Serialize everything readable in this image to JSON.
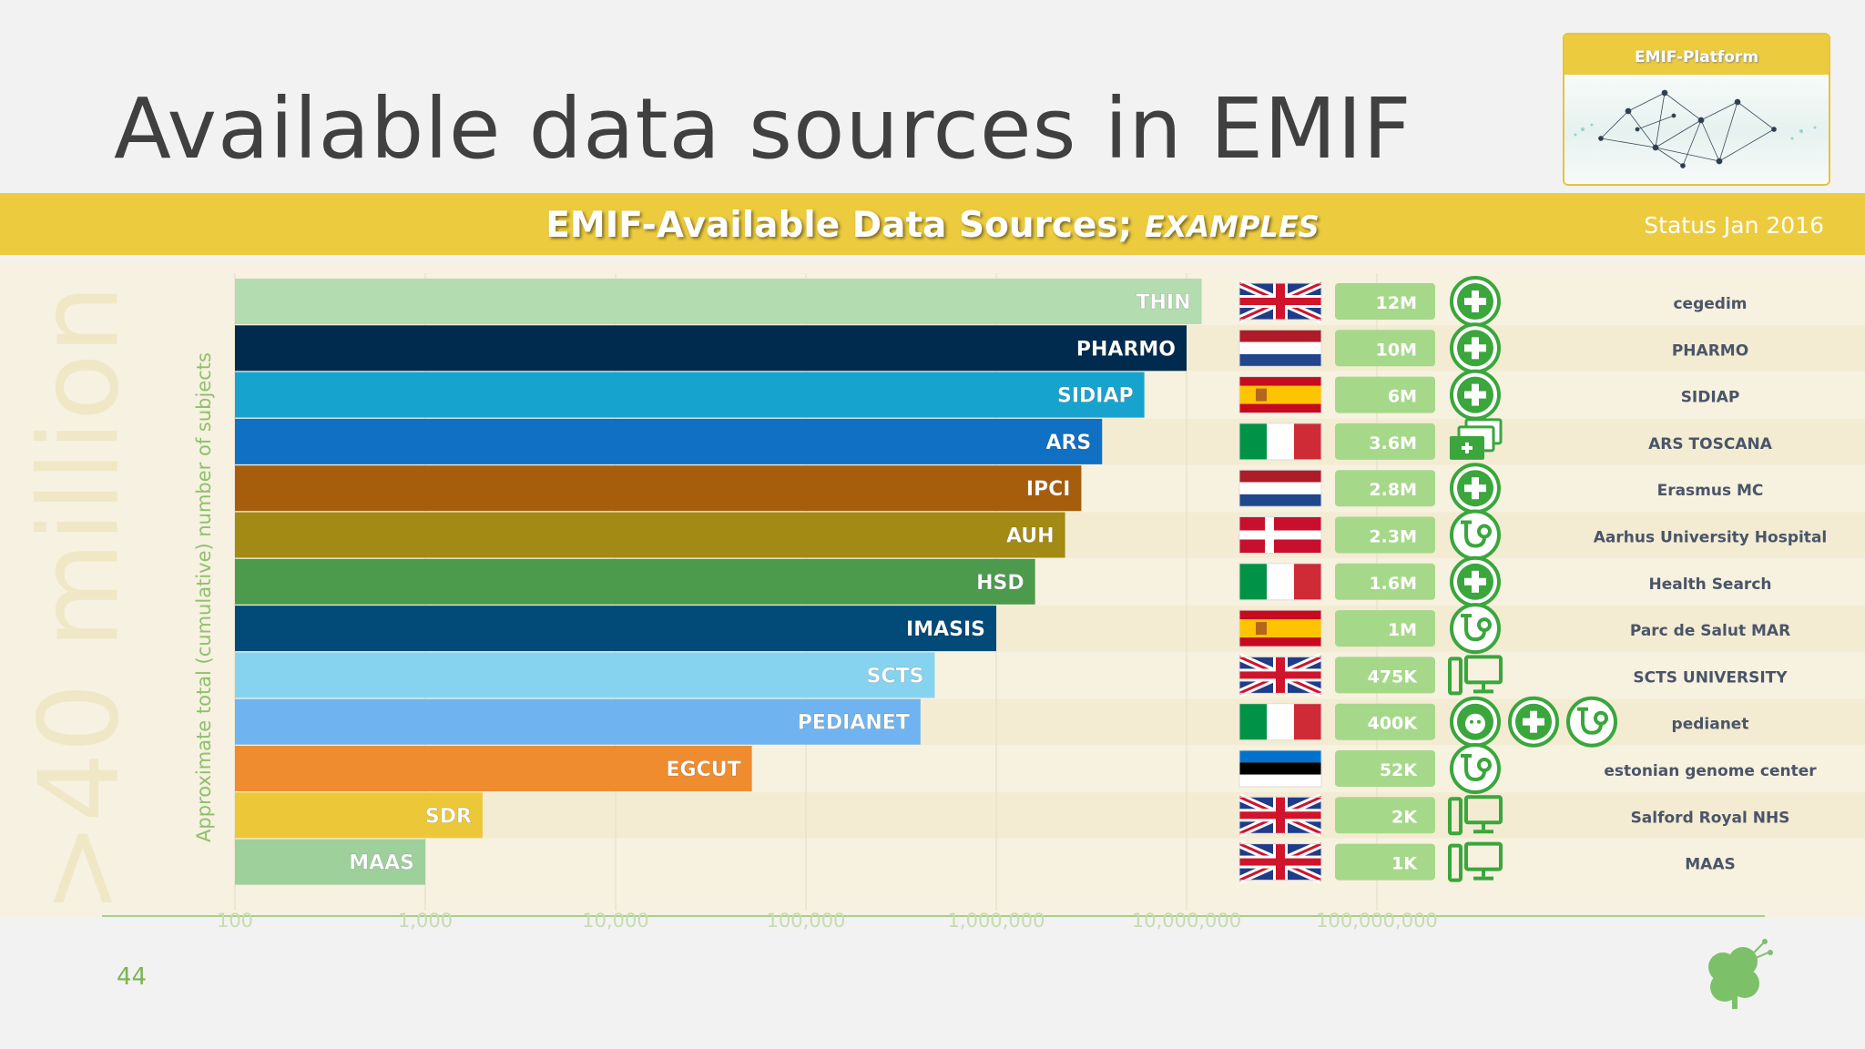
{
  "slide": {
    "title": "Available data sources in EMIF",
    "page_number": "44",
    "logo_header": "EMIF-Platform",
    "big_side_text": ">40 million"
  },
  "banner": {
    "title": "EMIF-Available Data Sources;",
    "title_suffix": "EXAMPLES",
    "status": "Status Jan 2016"
  },
  "colors": {
    "banner": "#eccb3f",
    "badge": "#a6d88a",
    "icon_green": "#3aa63c"
  },
  "chart_data": {
    "type": "bar",
    "orientation": "horizontal",
    "x_scale": "log",
    "title": "EMIF-Available Data Sources; EXAMPLES",
    "ylabel": "Approximate total (cumulative) number of subjects",
    "xlim": [
      100,
      100000000
    ],
    "xticks": [
      "100",
      "1,000",
      "10,000",
      "100,000",
      "1,000,000",
      "10,000,000",
      "100,000,000"
    ],
    "categories": [
      "THIN",
      "PHARMO",
      "SIDIAP",
      "ARS",
      "IPCI",
      "AUH",
      "HSD",
      "IMASIS",
      "SCTS",
      "PEDIANET",
      "EGCUT",
      "SDR",
      "MAAS"
    ],
    "values": [
      12000000,
      10000000,
      6000000,
      3600000,
      2800000,
      2300000,
      1600000,
      1000000,
      475000,
      400000,
      52000,
      2000,
      1000
    ],
    "value_labels": [
      "12M",
      "10M",
      "6M",
      "3.6M",
      "2.8M",
      "2.3M",
      "1.6M",
      "1M",
      "475K",
      "400K",
      "52K",
      "2K",
      "1K"
    ],
    "bar_colors": [
      "#b3dcb0",
      "#002b4e",
      "#16a4cf",
      "#0f70c4",
      "#a75e0c",
      "#a38a14",
      "#4c9b4c",
      "#024a78",
      "#86d3ef",
      "#6fb4f0",
      "#f08c30",
      "#ecc838",
      "#9dd09a"
    ],
    "label_colors": [
      "#ffffff",
      "#ffffff",
      "#ffffff",
      "#ffffff",
      "#ffffff",
      "#ffffff",
      "#ffffff",
      "#ffffff",
      "#ffffff",
      "#ffffff",
      "#ffffff",
      "#ffffff",
      "#ffffff"
    ],
    "countries": [
      "uk",
      "nl",
      "es",
      "it",
      "nl",
      "dk",
      "it",
      "es",
      "uk",
      "it",
      "ee",
      "uk",
      "uk"
    ],
    "care_types": [
      [
        "cross"
      ],
      [
        "cross"
      ],
      [
        "cross"
      ],
      [
        "folder"
      ],
      [
        "cross"
      ],
      [
        "stetho"
      ],
      [
        "cross"
      ],
      [
        "stetho"
      ],
      [
        "computer"
      ],
      [
        "baby",
        "cross",
        "stetho"
      ],
      [
        "stetho"
      ],
      [
        "computer"
      ],
      [
        "computer"
      ]
    ],
    "org_logos": [
      "cegedim",
      "PHARMO",
      "SIDIAP",
      "ARS TOSCANA",
      "Erasmus MC",
      "Aarhus University Hospital",
      "Health Search",
      "Parc de Salut MAR",
      "SCTS UNIVERSITY",
      "pedianet",
      "estonian genome center",
      "Salford Royal NHS",
      "MAAS"
    ]
  }
}
